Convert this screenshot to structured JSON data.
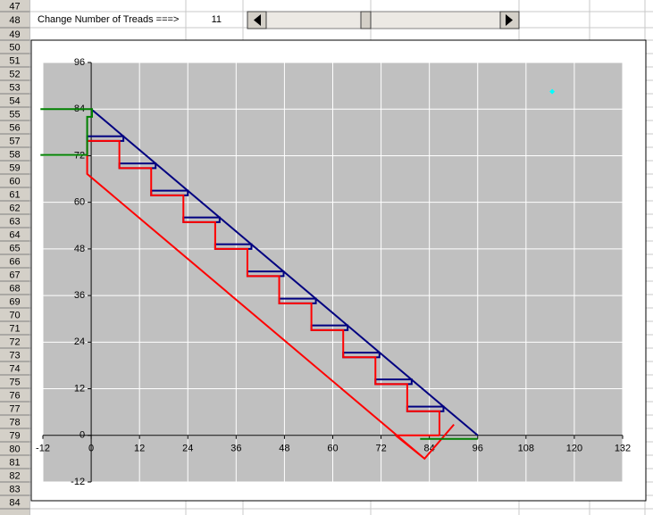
{
  "spreadsheet": {
    "rows": [
      47,
      48,
      49,
      50,
      51,
      52,
      53,
      54,
      55,
      56,
      57,
      58,
      59,
      60,
      61,
      62,
      63,
      64,
      65,
      66,
      67,
      68,
      69,
      70,
      71,
      72,
      73,
      74,
      75,
      76,
      77,
      78,
      79,
      80,
      81,
      82,
      83,
      84
    ],
    "label": "Change Number of Treads ===>",
    "treads": 11
  },
  "chart_data": {
    "type": "line",
    "xlim": [
      -12,
      132
    ],
    "xticks": [
      -12,
      0,
      12,
      24,
      36,
      48,
      60,
      72,
      84,
      96,
      108,
      120,
      132
    ],
    "ylim": [
      -12,
      96
    ],
    "yticks": [
      -12,
      0,
      12,
      24,
      36,
      48,
      60,
      72,
      84,
      96
    ],
    "grid": true,
    "background": "#c0c0c0",
    "series": [
      {
        "color": "#000080",
        "x": [
          0,
          96
        ],
        "y": [
          84,
          0
        ]
      },
      {
        "color": "#ff0000",
        "x": [
          -1,
          7,
          7,
          14.9,
          14.9,
          22.9,
          22.9,
          30.8,
          30.8,
          38.8,
          38.8,
          46.7,
          46.7,
          54.7,
          54.7,
          62.6,
          62.6,
          70.6,
          70.6,
          78.5,
          78.5,
          86.5,
          86.5
        ],
        "y": [
          75.8,
          75.8,
          68.8,
          68.8,
          61.8,
          61.8,
          54.9,
          54.9,
          48,
          48,
          41,
          41,
          34,
          34,
          27.1,
          27.1,
          20.1,
          20.1,
          13.2,
          13.2,
          6.2,
          6.2,
          0
        ]
      },
      {
        "color": "#ff0000",
        "x": [
          -1,
          -1,
          82.8,
          90.1,
          null,
          75.6,
          86.5,
          null,
          75.6,
          82.8
        ],
        "y": [
          75.8,
          67.3,
          -6,
          2.8,
          null,
          0,
          0,
          null,
          0,
          -6
        ]
      },
      {
        "color": "#008000",
        "x": [
          -12.6,
          0.2,
          0.2,
          -1,
          -1,
          -12.6,
          null,
          81.7,
          96
        ],
        "y": [
          84,
          84,
          82,
          82,
          72.2,
          72.2,
          null,
          -0.9,
          -0.9
        ]
      },
      {
        "color": "#00ffff",
        "marker": "diamond",
        "x": [
          114.5
        ],
        "y": [
          88.5
        ]
      }
    ],
    "treads": {
      "color": "#000080",
      "x0": [
        -1,
        7,
        14.9,
        22.9,
        30.8,
        38.8,
        46.7,
        54.7,
        62.6,
        70.6,
        78.5
      ],
      "x1": [
        8,
        16,
        24,
        31.9,
        39.8,
        47.8,
        55.8,
        63.7,
        71.6,
        79.6,
        87.5
      ],
      "top": [
        77,
        70,
        63,
        56.1,
        49.2,
        42.2,
        35.2,
        28.3,
        21.3,
        14.4,
        7.4
      ],
      "bottom": [
        75.8,
        68.8,
        61.8,
        54.9,
        48,
        41,
        34,
        27.1,
        20.1,
        13.2,
        6.2
      ]
    }
  }
}
